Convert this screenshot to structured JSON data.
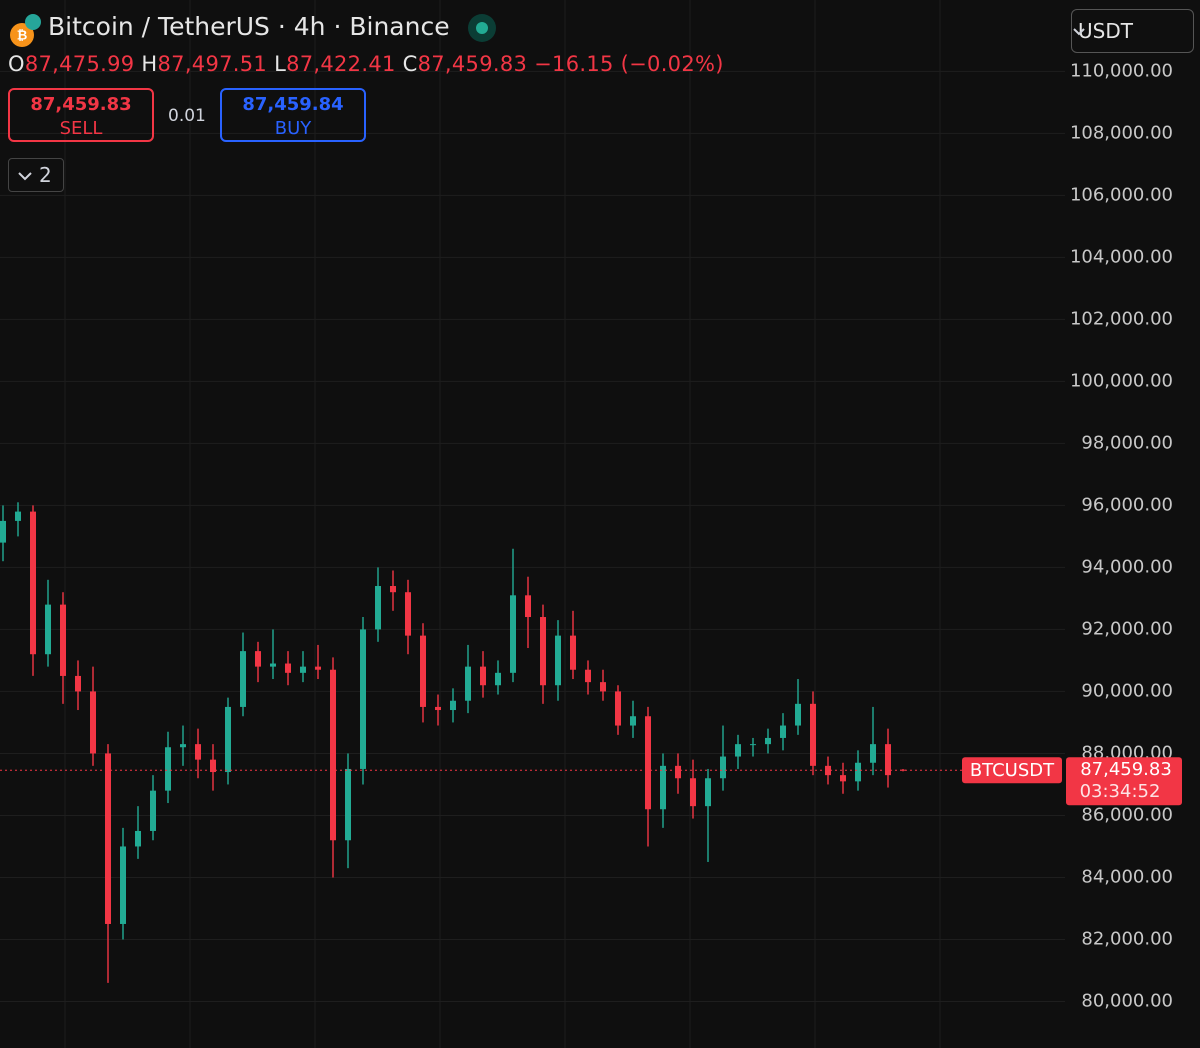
{
  "header": {
    "title": "Bitcoin / TetherUS · 4h · Binance",
    "ohlc": [
      {
        "key": "O",
        "value": "87,475.99"
      },
      {
        "key": "H",
        "value": "87,497.51"
      },
      {
        "key": "L",
        "value": "87,422.41"
      },
      {
        "key": "C",
        "value": "87,459.83"
      }
    ],
    "change": "−16.15 (−0.02%)"
  },
  "trade": {
    "sell_price": "87,459.83",
    "sell_label": "SELL",
    "quantity": "0.01",
    "buy_price": "87,459.84",
    "buy_label": "BUY"
  },
  "indicators_toggle": "2",
  "currency": "USDT",
  "chart_data": {
    "type": "candlestick",
    "up_color": "#22ab94",
    "down_color": "#f23645",
    "grid": true,
    "ylim": [
      78500,
      112300
    ],
    "yticks": [
      {
        "value": 80000,
        "label": "80,000.00"
      },
      {
        "value": 82000,
        "label": "82,000.00"
      },
      {
        "value": 84000,
        "label": "84,000.00"
      },
      {
        "value": 86000,
        "label": "86,000.00"
      },
      {
        "value": 88000,
        "label": "88,000.00"
      },
      {
        "value": 90000,
        "label": "90,000.00"
      },
      {
        "value": 92000,
        "label": "92,000.00"
      },
      {
        "value": 94000,
        "label": "94,000.00"
      },
      {
        "value": 96000,
        "label": "96,000.00"
      },
      {
        "value": 98000,
        "label": "98,000.00"
      },
      {
        "value": 100000,
        "label": "100,000.00"
      },
      {
        "value": 102000,
        "label": "102,000.00"
      },
      {
        "value": 104000,
        "label": "104,000.00"
      },
      {
        "value": 106000,
        "label": "106,000.00"
      },
      {
        "value": 108000,
        "label": "108,000.00"
      },
      {
        "value": 110000,
        "label": "110,000.00"
      }
    ],
    "open": [
      94800,
      95500,
      95800,
      91200,
      92800,
      90500,
      90000,
      88000,
      82500,
      85000,
      85500,
      86800,
      88200,
      88300,
      87800,
      87400,
      89500,
      91300,
      90800,
      90900,
      90600,
      90800,
      90700,
      85200,
      87500,
      92000,
      93400,
      93200,
      91800,
      89500,
      89400,
      89700,
      90800,
      90200,
      90600,
      93100,
      92400,
      90200,
      91800,
      90700,
      90300,
      90000,
      88900,
      89200,
      86200,
      87600,
      87200,
      86300,
      87200,
      87900,
      88300,
      88300,
      88500,
      88900,
      89600,
      87600,
      87300,
      87100,
      87700,
      88300,
      87475.99
    ],
    "high": [
      96000,
      96100,
      96000,
      93600,
      93200,
      91000,
      90800,
      88300,
      85600,
      86300,
      87300,
      88700,
      88900,
      88800,
      88300,
      89800,
      91900,
      91600,
      92000,
      91300,
      91300,
      91500,
      91100,
      88000,
      92400,
      94000,
      93900,
      93600,
      92200,
      89900,
      90100,
      91500,
      91300,
      91000,
      94600,
      93700,
      92800,
      92300,
      92600,
      91000,
      90700,
      90200,
      89700,
      89500,
      88000,
      88000,
      87800,
      87500,
      88900,
      88600,
      88500,
      88800,
      89300,
      90400,
      90000,
      87900,
      87700,
      88100,
      89500,
      88800,
      87497.51
    ],
    "low": [
      94200,
      95000,
      90500,
      90800,
      89600,
      89400,
      87600,
      80600,
      82000,
      84600,
      85200,
      86400,
      87600,
      87200,
      86800,
      87000,
      89200,
      90300,
      90400,
      90200,
      90300,
      90400,
      84000,
      84300,
      87000,
      91600,
      92600,
      91200,
      89000,
      88900,
      89000,
      89300,
      89800,
      89900,
      90300,
      91400,
      89600,
      89700,
      90400,
      89900,
      89700,
      88600,
      88500,
      85000,
      85600,
      86700,
      85900,
      84500,
      86800,
      87500,
      87900,
      88000,
      88100,
      88600,
      87300,
      87000,
      86700,
      86800,
      87300,
      86900,
      87422.41
    ],
    "close": [
      95500,
      95800,
      91200,
      92800,
      90500,
      90000,
      88000,
      82500,
      85000,
      85500,
      86800,
      88200,
      88300,
      87800,
      87400,
      89500,
      91300,
      90800,
      90900,
      90600,
      90800,
      90700,
      85200,
      87500,
      92000,
      93400,
      93200,
      91800,
      89500,
      89400,
      89700,
      90800,
      90200,
      90600,
      93100,
      92400,
      90200,
      91800,
      90700,
      90300,
      90000,
      88900,
      89200,
      86200,
      87600,
      87200,
      86300,
      87200,
      87900,
      88300,
      88300,
      88500,
      88900,
      89600,
      87600,
      87300,
      87100,
      87700,
      88300,
      87300,
      87459.83
    ],
    "last_price": {
      "value": 87459.83,
      "label": "87,459.83"
    },
    "symbol_label": "BTCUSDT",
    "countdown": "03:34:52"
  }
}
